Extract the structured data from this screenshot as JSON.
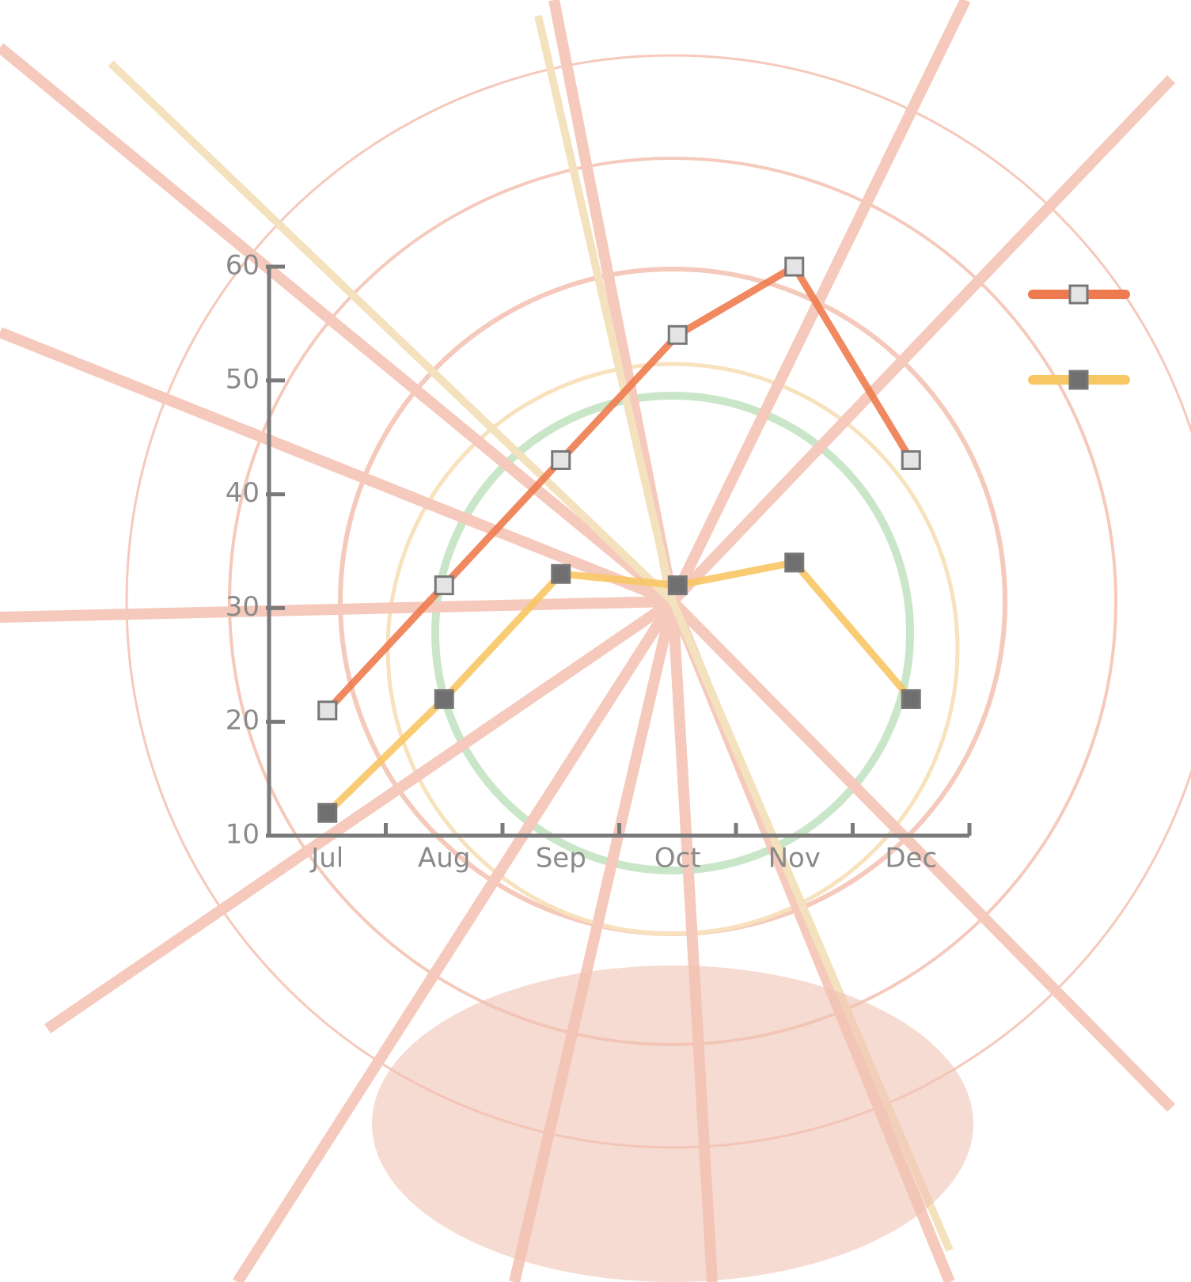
{
  "chart_data": {
    "type": "line",
    "categories": [
      "Jul",
      "Aug",
      "Sep",
      "Oct",
      "Nov",
      "Dec"
    ],
    "series": [
      {
        "color": "#ee7b4f",
        "marker_color": "#e4e4e4",
        "values": [
          21,
          32,
          43,
          54,
          60,
          43
        ]
      },
      {
        "color": "#f8c765",
        "marker_color": "#6f6f6f",
        "values": [
          12,
          22,
          33,
          32,
          34,
          22
        ]
      }
    ],
    "ylim": [
      10,
      60
    ],
    "yticks": [
      10,
      20,
      30,
      40,
      50,
      60
    ],
    "legend": "right"
  }
}
